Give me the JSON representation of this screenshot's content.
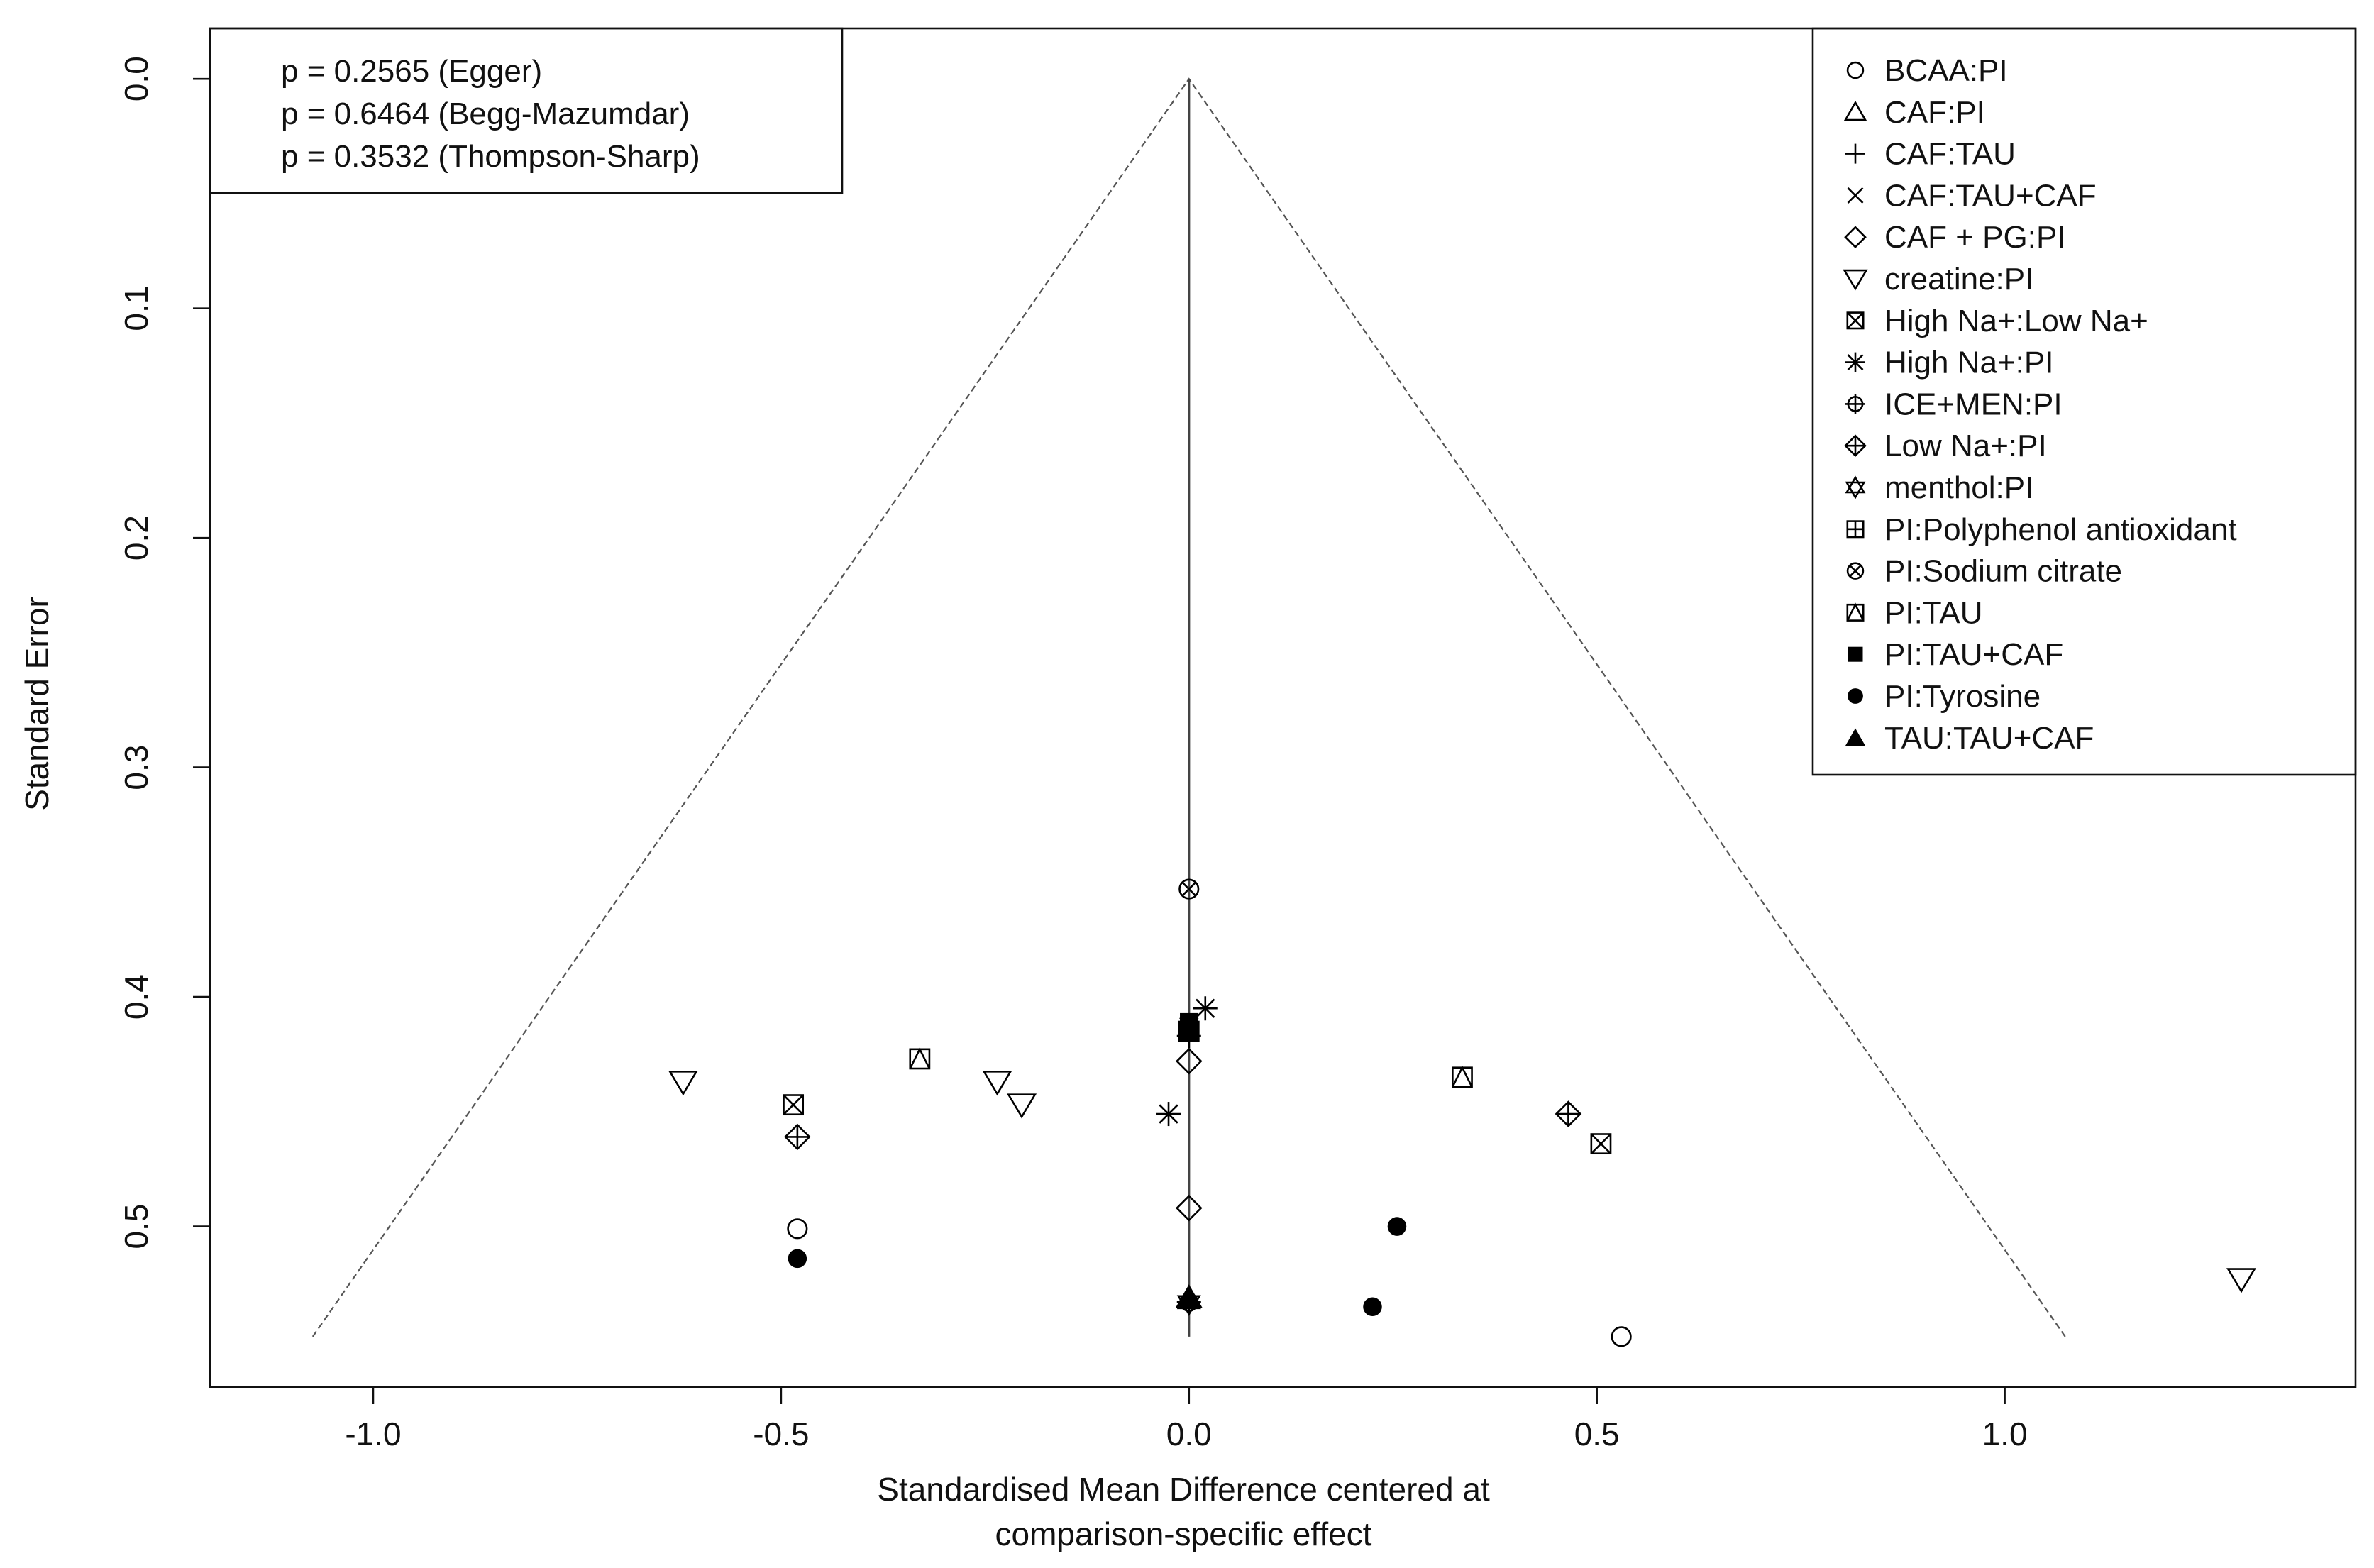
{
  "chart_data": {
    "type": "scatter",
    "subtype": "funnel plot",
    "xlabel": [
      "Standardised Mean Difference centered at",
      "comparison-specific effect"
    ],
    "ylabel": "Standard Error",
    "xlim": [
      -1.2,
      1.43
    ],
    "ylim": [
      0.57,
      -0.022
    ],
    "y_reversed": true,
    "x_ticks": [
      {
        "value": -1.0,
        "label": "-1.0"
      },
      {
        "value": -0.5,
        "label": "-0.5"
      },
      {
        "value": 0.0,
        "label": "0.0"
      },
      {
        "value": 0.5,
        "label": "0.5"
      },
      {
        "value": 1.0,
        "label": "1.0"
      }
    ],
    "y_ticks": [
      {
        "value": 0.0,
        "label": "0.0"
      },
      {
        "value": 0.1,
        "label": "0.1"
      },
      {
        "value": 0.2,
        "label": "0.2"
      },
      {
        "value": 0.3,
        "label": "0.3"
      },
      {
        "value": 0.4,
        "label": "0.4"
      },
      {
        "value": 0.5,
        "label": "0.5"
      }
    ],
    "funnel": {
      "apex_se": 0.0,
      "max_se": 0.548,
      "multiplier": 1.96,
      "center_line": 0
    },
    "stats": [
      "p = 0.2565 (Egger)",
      "p = 0.6464 (Begg-Mazumdar)",
      "p = 0.3532 (Thompson-Sharp)"
    ],
    "legend_position": "top-right",
    "series": [
      {
        "name": "BCAA:PI",
        "symbol": "circle-open",
        "points": [
          [
            -0.48,
            0.501
          ],
          [
            0.53,
            0.548
          ]
        ]
      },
      {
        "name": "CAF:PI",
        "symbol": "triangle-up-open",
        "points": [
          [
            0.0,
            0.531
          ]
        ]
      },
      {
        "name": "CAF:TAU",
        "symbol": "plus",
        "points": [
          [
            0.0,
            0.417
          ]
        ]
      },
      {
        "name": "CAF:TAU+CAF",
        "symbol": "x",
        "points": [
          [
            0.0,
            0.413
          ]
        ]
      },
      {
        "name": "CAF + PG:PI",
        "symbol": "diamond-open",
        "points": [
          [
            0.0,
            0.428
          ],
          [
            0.0,
            0.492
          ]
        ]
      },
      {
        "name": "creatine:PI",
        "symbol": "triangle-down-open",
        "points": [
          [
            -0.62,
            0.437
          ],
          [
            -0.235,
            0.437
          ],
          [
            -0.205,
            0.447
          ],
          [
            1.29,
            0.523
          ]
        ]
      },
      {
        "name": "High Na+:Low Na+",
        "symbol": "square-x",
        "points": [
          [
            -0.485,
            0.447
          ],
          [
            0.505,
            0.464
          ]
        ]
      },
      {
        "name": "High Na+:PI",
        "symbol": "asterisk",
        "points": [
          [
            0.02,
            0.405
          ],
          [
            -0.025,
            0.451
          ]
        ]
      },
      {
        "name": "ICE+MEN:PI",
        "symbol": "circle-plus",
        "points": [
          [
            0.0,
            0.533
          ]
        ]
      },
      {
        "name": "Low Na+:PI",
        "symbol": "diamond-plus",
        "points": [
          [
            -0.48,
            0.461
          ],
          [
            0.465,
            0.451
          ]
        ]
      },
      {
        "name": "menthol:PI",
        "symbol": "star-of-david",
        "points": [
          [
            0.0,
            0.533
          ]
        ]
      },
      {
        "name": "PI:Polyphenol antioxidant",
        "symbol": "square-plus",
        "points": [
          [
            0.0,
            0.415
          ]
        ]
      },
      {
        "name": "PI:Sodium citrate",
        "symbol": "circle-x",
        "points": [
          [
            0.0,
            0.353
          ]
        ]
      },
      {
        "name": "PI:TAU",
        "symbol": "square-triangle",
        "points": [
          [
            -0.33,
            0.427
          ],
          [
            0.335,
            0.435
          ]
        ]
      },
      {
        "name": "PI:TAU+CAF",
        "symbol": "square-filled",
        "points": [
          [
            0.0,
            0.411
          ],
          [
            0.0,
            0.415
          ]
        ]
      },
      {
        "name": "PI:Tyrosine",
        "symbol": "circle-filled",
        "points": [
          [
            -0.48,
            0.514
          ],
          [
            0.255,
            0.5
          ],
          [
            0.225,
            0.535
          ]
        ]
      },
      {
        "name": "TAU:TAU+CAF",
        "symbol": "triangle-up-filled",
        "points": [
          [
            0.0,
            0.531
          ]
        ]
      }
    ]
  }
}
